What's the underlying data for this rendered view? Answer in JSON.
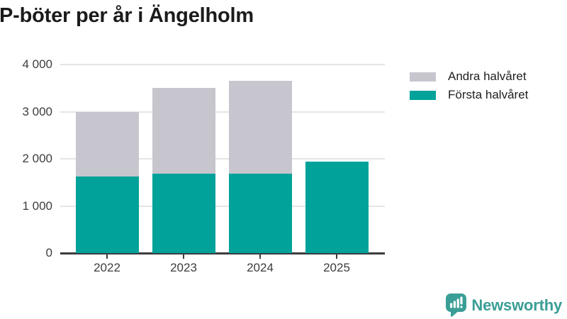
{
  "title": "P-böter per år i Ängelholm",
  "colors": {
    "first_half": "#00a29a",
    "second_half": "#c7c6ce",
    "axis": "#3c3c3c",
    "gridline": "#e5e5e5",
    "title_text": "#1b1b1b",
    "logo": "#3a9e96"
  },
  "legend": [
    {
      "label": "Andra halvåret",
      "color": "#c7c6ce"
    },
    {
      "label": "Första halvåret",
      "color": "#00a29a"
    }
  ],
  "chart_data": {
    "type": "bar",
    "stacked": true,
    "title": "P-böter per år i Ängelholm",
    "categories": [
      "2022",
      "2023",
      "2024",
      "2025"
    ],
    "series": [
      {
        "name": "Första halvåret",
        "color": "#00a29a",
        "values": [
          1630,
          1690,
          1690,
          1940
        ]
      },
      {
        "name": "Andra halvåret",
        "color": "#c7c6ce",
        "values": [
          1370,
          1820,
          1970,
          0
        ]
      }
    ],
    "totals": [
      3000,
      3510,
      3660,
      1940
    ],
    "xlabel": "",
    "ylabel": "",
    "ylim": [
      0,
      4000
    ],
    "yticks": [
      0,
      1000,
      2000,
      3000,
      4000
    ],
    "ytick_labels": [
      "0",
      "1 000",
      "2 000",
      "3 000",
      "4 000"
    ],
    "grid": true,
    "legend_position": "top-right"
  },
  "footer": {
    "brand": "Newsworthy",
    "logo_icon": "bar-chart-speech-bubble-icon"
  }
}
